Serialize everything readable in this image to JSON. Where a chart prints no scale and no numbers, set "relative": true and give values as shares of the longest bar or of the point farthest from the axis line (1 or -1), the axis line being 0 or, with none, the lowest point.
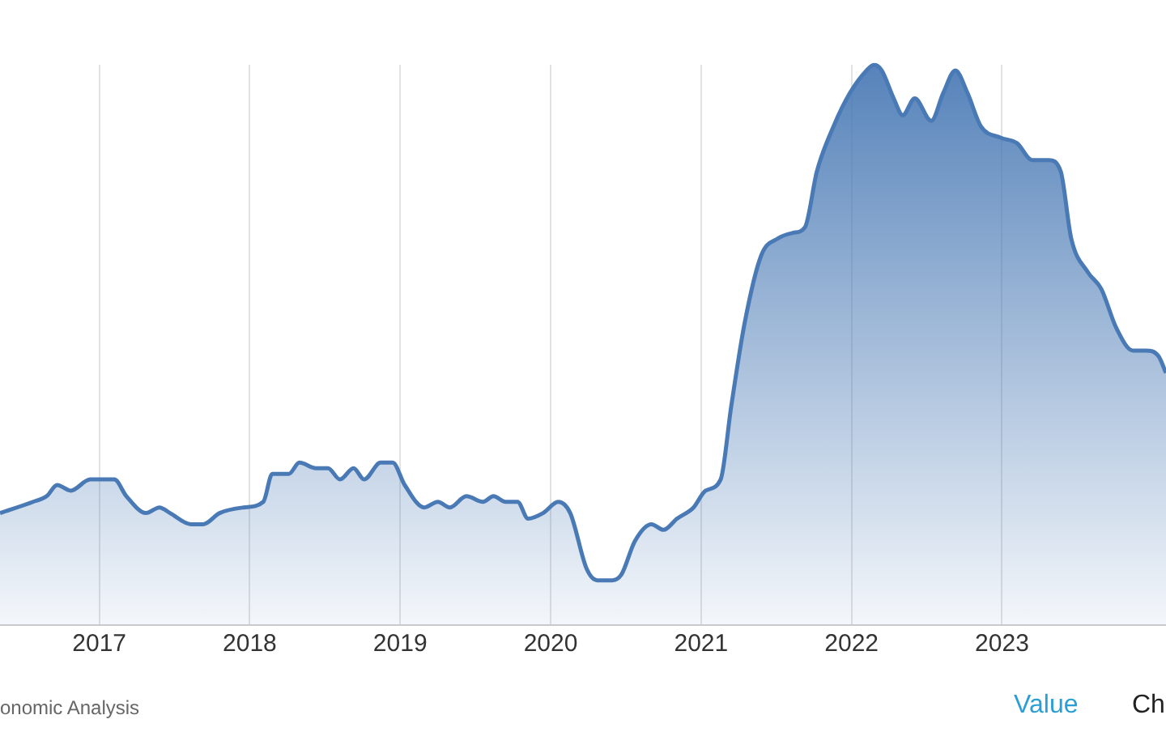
{
  "chart_data": {
    "type": "area",
    "relative": true,
    "x": [
      2016.34,
      2016.56,
      2016.65,
      2016.72,
      2016.81,
      2016.94,
      2017.04,
      2017.1,
      2017.18,
      2017.31,
      2017.4,
      2017.47,
      2017.61,
      2017.69,
      2017.8,
      2017.96,
      2018.09,
      2018.15,
      2018.26,
      2018.33,
      2018.44,
      2018.52,
      2018.6,
      2018.69,
      2018.76,
      2018.87,
      2018.95,
      2019.03,
      2019.16,
      2019.25,
      2019.33,
      2019.44,
      2019.55,
      2019.62,
      2019.7,
      2019.78,
      2019.85,
      2019.95,
      2020.05,
      2020.13,
      2020.24,
      2020.31,
      2020.41,
      2020.47,
      2020.56,
      2020.67,
      2020.75,
      2020.84,
      2020.95,
      2021.03,
      2021.13,
      2021.2,
      2021.29,
      2021.4,
      2021.51,
      2021.61,
      2021.69,
      2021.77,
      2021.88,
      2021.99,
      2022.1,
      2022.15,
      2022.2,
      2022.28,
      2022.34,
      2022.42,
      2022.53,
      2022.61,
      2022.69,
      2022.77,
      2022.86,
      2022.99,
      2023.1,
      2023.2,
      2023.31,
      2023.39,
      2023.46,
      2023.57,
      2023.66,
      2023.76,
      2023.87,
      2023.96,
      2024.04,
      2024.09
    ],
    "series": [
      {
        "color": "#4a7ab5",
        "values": [
          0.2,
          0.22,
          0.23,
          0.25,
          0.24,
          0.26,
          0.26,
          0.26,
          0.23,
          0.2,
          0.21,
          0.2,
          0.18,
          0.18,
          0.2,
          0.21,
          0.22,
          0.27,
          0.27,
          0.29,
          0.28,
          0.28,
          0.26,
          0.28,
          0.26,
          0.29,
          0.29,
          0.25,
          0.21,
          0.22,
          0.21,
          0.23,
          0.22,
          0.23,
          0.22,
          0.22,
          0.19,
          0.2,
          0.22,
          0.2,
          0.1,
          0.08,
          0.08,
          0.09,
          0.15,
          0.18,
          0.17,
          0.19,
          0.21,
          0.24,
          0.26,
          0.39,
          0.54,
          0.66,
          0.69,
          0.7,
          0.71,
          0.81,
          0.89,
          0.95,
          0.99,
          1,
          0.99,
          0.94,
          0.91,
          0.94,
          0.9,
          0.95,
          0.99,
          0.95,
          0.89,
          0.87,
          0.86,
          0.83,
          0.83,
          0.81,
          0.69,
          0.63,
          0.6,
          0.53,
          0.49,
          0.49,
          0.48,
          0.45
        ]
      }
    ],
    "xlim": [
      2016.34,
      2024.09
    ],
    "xticks": [
      2017,
      2018,
      2019,
      2020,
      2021,
      2022,
      2023
    ],
    "grid": "x",
    "legend": false,
    "annotations": [
      "onomic Analysis",
      "Value",
      "Ch"
    ]
  }
}
